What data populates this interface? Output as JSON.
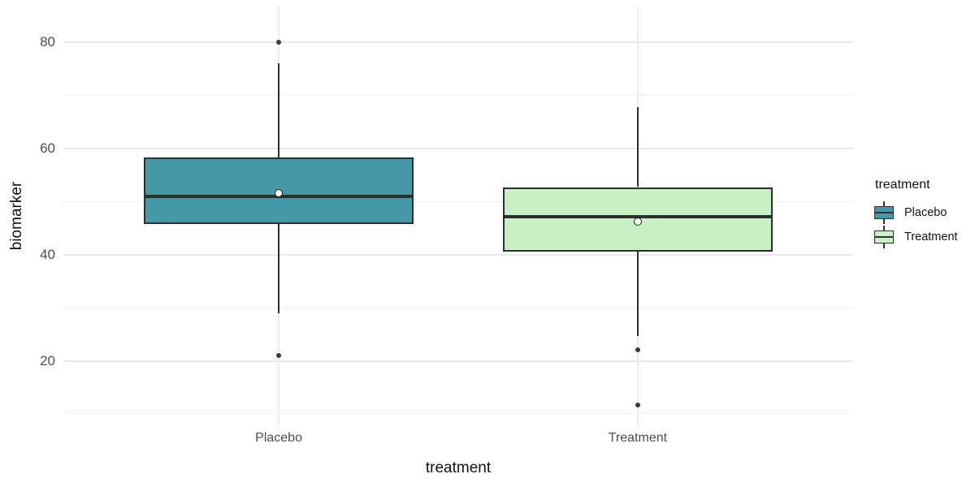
{
  "figure": {
    "background": "#FFFFFF"
  },
  "y_axis": {
    "title": "biomarker"
  },
  "x_axis": {
    "title": "treatment"
  },
  "legend": {
    "title": "treatment",
    "position": "right",
    "entries": [
      {
        "label": "Placebo",
        "fill": "#4598A6"
      },
      {
        "label": "Treatment",
        "fill": "#C8F0C4"
      }
    ]
  },
  "chart_data": {
    "type": "boxplot",
    "title": "",
    "xlabel": "treatment",
    "ylabel": "biomarker",
    "categories": [
      "Placebo",
      "Treatment"
    ],
    "series": [
      {
        "name": "Placebo",
        "fill": "#4598A6",
        "whisker_low": 29,
        "q1": 45.7,
        "median": 50.9,
        "q3": 58.3,
        "whisker_high": 76,
        "mean": 51.6,
        "outliers": [
          80,
          21
        ]
      },
      {
        "name": "Treatment",
        "fill": "#C8F0C4",
        "whisker_low": 24.7,
        "q1": 40.6,
        "median": 47.1,
        "q3": 52.7,
        "whisker_high": 67.8,
        "mean": 46.2,
        "outliers": [
          22,
          11.7
        ]
      }
    ],
    "mean_marker": "open-white-circle",
    "ylim": [
      7.7,
      86.7
    ],
    "y_major_ticks": [
      20,
      40,
      60,
      80
    ],
    "y_minor_ticks": [
      10,
      30,
      50,
      70
    ],
    "grid": true,
    "legend_position": "right",
    "colors": {
      "grid_major": "#E8E8E8",
      "grid_minor": "#F0F0F0",
      "axis_text": "#4D4D4D",
      "axis_title": "#111111",
      "box_stroke": "#2E2E2E",
      "outlier": "#3A3A3A"
    }
  }
}
